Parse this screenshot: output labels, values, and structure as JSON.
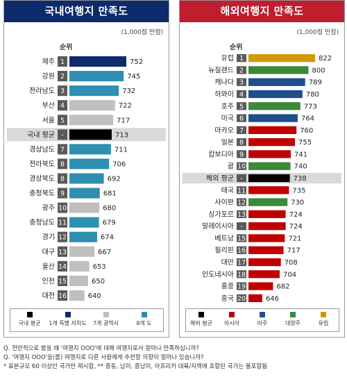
{
  "colors": {
    "domestic_title_bg": "#0d2a6b",
    "overseas_title_bg": "#bf1e2e",
    "highlight_row": "#d9d9d9"
  },
  "domestic": {
    "title": "국내여행지 만족도",
    "unit": "(1,000점 만점)",
    "rank_header": "순위",
    "legend": [
      {
        "label": "국내 평균",
        "color": "#000000"
      },
      {
        "label": "1개 특별 자치도",
        "color": "#0d2a6b"
      },
      {
        "label": "7개 광역시",
        "color": "#bfbfbf"
      },
      {
        "label": "8개 도",
        "color": "#2f8fb0"
      }
    ]
  },
  "overseas": {
    "title": "해외여행지 만족도",
    "unit": "(1,000점 만점)",
    "rank_header": "순위",
    "legend": [
      {
        "label": "해외 평균",
        "color": "#000000"
      },
      {
        "label": "아시아",
        "color": "#c00000"
      },
      {
        "label": "미주",
        "color": "#1f4e8c"
      },
      {
        "label": "대양주",
        "color": "#3a8a3a"
      },
      {
        "label": "유럽",
        "color": "#d19a00"
      }
    ]
  },
  "chart_data": [
    {
      "type": "bar",
      "title": "국내여행지 만족도",
      "unit": "(1,000점 만점)",
      "rows": [
        {
          "rank": "1",
          "name": "제주",
          "value": 752,
          "group": "1개 특별 자치도",
          "color": "#0d2a6b"
        },
        {
          "rank": "2",
          "name": "강원",
          "value": 745,
          "group": "8개 도",
          "color": "#2f8fb0"
        },
        {
          "rank": "3",
          "name": "전라남도",
          "value": 732,
          "group": "8개 도",
          "color": "#2f8fb0"
        },
        {
          "rank": "4",
          "name": "부산",
          "value": 722,
          "group": "7개 광역시",
          "color": "#bfbfbf"
        },
        {
          "rank": "5",
          "name": "서울",
          "value": 717,
          "group": "7개 광역시",
          "color": "#bfbfbf"
        },
        {
          "rank": "-",
          "name": "국내 평균",
          "value": 713,
          "group": "국내 평균",
          "color": "#000000",
          "highlight": true
        },
        {
          "rank": "7",
          "name": "경상남도",
          "value": 711,
          "group": "8개 도",
          "color": "#2f8fb0"
        },
        {
          "rank": "8",
          "name": "전라북도",
          "value": 706,
          "group": "8개 도",
          "color": "#2f8fb0"
        },
        {
          "rank": "8",
          "name": "경상북도",
          "value": 692,
          "group": "8개 도",
          "color": "#2f8fb0"
        },
        {
          "rank": "9",
          "name": "충청북도",
          "value": 681,
          "group": "8개 도",
          "color": "#2f8fb0"
        },
        {
          "rank": "10",
          "name": "광주",
          "value": 680,
          "group": "7개 광역시",
          "color": "#bfbfbf"
        },
        {
          "rank": "11",
          "name": "충청남도",
          "value": 679,
          "group": "8개 도",
          "color": "#2f8fb0"
        },
        {
          "rank": "12",
          "name": "경기",
          "value": 674,
          "group": "8개 도",
          "color": "#2f8fb0"
        },
        {
          "rank": "13",
          "name": "대구",
          "value": 667,
          "group": "7개 광역시",
          "color": "#bfbfbf"
        },
        {
          "rank": "14",
          "name": "울산",
          "value": 653,
          "group": "7개 광역시",
          "color": "#bfbfbf"
        },
        {
          "rank": "15",
          "name": "인천",
          "value": 650,
          "group": "7개 광역시",
          "color": "#bfbfbf"
        },
        {
          "rank": "16",
          "name": "대전",
          "value": 640,
          "group": "7개 광역시",
          "color": "#bfbfbf"
        }
      ]
    },
    {
      "type": "bar",
      "title": "해외여행지 만족도",
      "unit": "(1,000점 만점)",
      "rows": [
        {
          "rank": "1",
          "name": "유럽",
          "value": 822,
          "group": "유럽",
          "color": "#d19a00"
        },
        {
          "rank": "2",
          "name": "뉴질랜드",
          "value": 800,
          "group": "대양주",
          "color": "#3a8a3a"
        },
        {
          "rank": "3",
          "name": "캐나다",
          "value": 789,
          "group": "미주",
          "color": "#1f4e8c"
        },
        {
          "rank": "4",
          "name": "하와이",
          "value": 780,
          "group": "미주",
          "color": "#1f4e8c"
        },
        {
          "rank": "5",
          "name": "호주",
          "value": 773,
          "group": "대양주",
          "color": "#3a8a3a"
        },
        {
          "rank": "6",
          "name": "미국",
          "value": 764,
          "group": "미주",
          "color": "#1f4e8c"
        },
        {
          "rank": "7",
          "name": "마카오",
          "value": 760,
          "group": "아시아",
          "color": "#c00000"
        },
        {
          "rank": "8",
          "name": "일본",
          "value": 755,
          "group": "아시아",
          "color": "#c00000"
        },
        {
          "rank": "9",
          "name": "캄보디아",
          "value": 741,
          "group": "아시아",
          "color": "#c00000"
        },
        {
          "rank": "10",
          "name": "괌",
          "value": 740,
          "group": "대양주",
          "color": "#3a8a3a"
        },
        {
          "rank": "-",
          "name": "해외 평균",
          "value": 738,
          "group": "해외 평균",
          "color": "#000000",
          "highlight": true
        },
        {
          "rank": "11",
          "name": "태국",
          "value": 735,
          "group": "아시아",
          "color": "#c00000"
        },
        {
          "rank": "12",
          "name": "사이판",
          "value": 730,
          "group": "대양주",
          "color": "#3a8a3a"
        },
        {
          "rank": "13",
          "name": "싱가포르",
          "value": 724,
          "group": "아시아",
          "color": "#c00000"
        },
        {
          "rank": "-",
          "name": "말레이시아",
          "value": 724,
          "group": "아시아",
          "color": "#c00000"
        },
        {
          "rank": "15",
          "name": "베트남",
          "value": 721,
          "group": "아시아",
          "color": "#c00000"
        },
        {
          "rank": "16",
          "name": "필리핀",
          "value": 717,
          "group": "아시아",
          "color": "#c00000"
        },
        {
          "rank": "17",
          "name": "대만",
          "value": 708,
          "group": "아시아",
          "color": "#c00000"
        },
        {
          "rank": "18",
          "name": "인도네시아",
          "value": 704,
          "group": "아시아",
          "color": "#c00000"
        },
        {
          "rank": "19",
          "name": "홍콩",
          "value": 682,
          "group": "아시아",
          "color": "#c00000"
        },
        {
          "rank": "20",
          "name": "중국",
          "value": 646,
          "group": "아시아",
          "color": "#c00000"
        }
      ]
    }
  ],
  "footnotes": [
    "Q. 전반적으로 봤을 때 '여행지 OOO'에 대해 여행지로서 얼마나 만족하십니까?",
    "Q. '여행지 OOO'을(를) 여행지로 다른 사람에게 추천할 의향이 얼마나 있습니까?",
    "* 표본규모 60 이상인 국가만 제시함, ** 중동, 남미, 중남미, 아프리카 대륙/지역에 포함된 국가는 불포함됨"
  ]
}
